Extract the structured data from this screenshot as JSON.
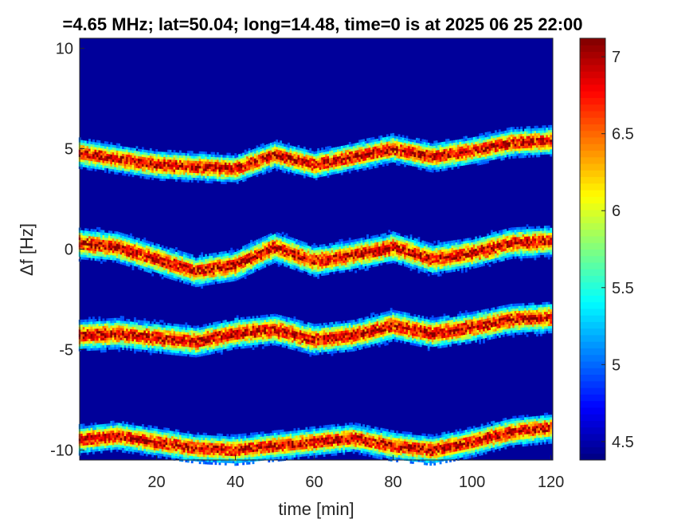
{
  "chart_data": {
    "type": "heatmap",
    "title": "=4.65 MHz;  lat=50.04; long=14.48, time=0 is at 2025 06 25 22:00",
    "xlabel": "time [min]",
    "ylabel": "Δf [Hz]",
    "xlim": [
      0.5,
      120.5
    ],
    "ylim": [
      -10.5,
      10.5
    ],
    "xticks": [
      20,
      40,
      60,
      80,
      100,
      120
    ],
    "yticks": [
      -10,
      -5,
      0,
      5,
      10
    ],
    "ytick_labels": [
      "-10",
      "-5",
      "0",
      "5",
      "10"
    ],
    "colorbar": {
      "colormap": "jet",
      "range": [
        4.38,
        7.12
      ],
      "ticks": [
        4.5,
        5,
        5.5,
        6,
        6.5,
        7
      ],
      "tick_labels": [
        "4.5",
        "5",
        "5.5",
        "6",
        "6.5",
        "7"
      ]
    },
    "background_value": 4.45,
    "series": [
      {
        "time_min": [
          0,
          10,
          20,
          30,
          40,
          50,
          60,
          70,
          80,
          90,
          100,
          110,
          120
        ],
        "df_hz": [
          4.8,
          4.5,
          4.2,
          4.1,
          4.0,
          4.7,
          4.2,
          4.6,
          5.0,
          4.6,
          4.9,
          5.3,
          5.4
        ],
        "peak_value": 6.9,
        "spread_hz": 0.7
      },
      {
        "time_min": [
          0,
          10,
          20,
          30,
          40,
          50,
          60,
          70,
          80,
          90,
          100,
          110,
          120
        ],
        "df_hz": [
          0.3,
          0.1,
          -0.5,
          -1.1,
          -0.8,
          0.1,
          -0.6,
          -0.3,
          0.1,
          -0.5,
          -0.2,
          0.3,
          0.4
        ],
        "peak_value": 6.9,
        "spread_hz": 0.75
      },
      {
        "time_min": [
          0,
          10,
          20,
          30,
          40,
          50,
          60,
          70,
          80,
          90,
          100,
          110,
          120
        ],
        "df_hz": [
          -4.3,
          -4.2,
          -4.4,
          -4.6,
          -4.2,
          -4.0,
          -4.5,
          -4.3,
          -3.8,
          -4.2,
          -3.9,
          -3.5,
          -3.4
        ],
        "peak_value": 6.9,
        "spread_hz": 0.75
      },
      {
        "time_min": [
          0,
          10,
          20,
          30,
          40,
          50,
          60,
          70,
          80,
          90,
          100,
          110,
          120
        ],
        "df_hz": [
          -9.5,
          -9.3,
          -9.6,
          -9.9,
          -10.0,
          -9.8,
          -9.6,
          -9.4,
          -9.8,
          -10.0,
          -9.6,
          -9.1,
          -8.9
        ],
        "peak_value": 6.9,
        "spread_hz": 0.7
      }
    ]
  }
}
